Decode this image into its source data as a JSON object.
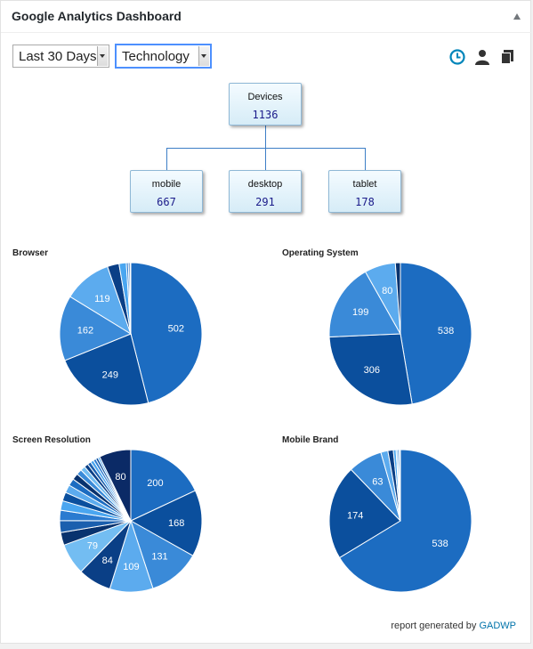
{
  "widget": {
    "title": "Google Analytics Dashboard",
    "period_select": "Last 30 Days",
    "report_select": "Technology",
    "icons": [
      "clock-icon",
      "user-icon",
      "copy-icon"
    ]
  },
  "tree": {
    "root": {
      "label": "Devices",
      "value": "1136"
    },
    "children": [
      {
        "label": "mobile",
        "value": "667"
      },
      {
        "label": "desktop",
        "value": "291"
      },
      {
        "label": "tablet",
        "value": "178"
      }
    ]
  },
  "chart_data": [
    {
      "type": "pie",
      "title": "Browser",
      "values": [
        502,
        249,
        162,
        119,
        29,
        18,
        5,
        4,
        2
      ],
      "labels": [
        "502",
        "249",
        "162",
        "119",
        "",
        "",
        "",
        "",
        ""
      ],
      "colors": [
        "#1c6cc1",
        "#0b4f9d",
        "#3a8ad8",
        "#5cabee",
        "#0a3f86",
        "#4aa6f0",
        "#2b7bd0",
        "#1b5fae",
        "#8cc8f5"
      ]
    },
    {
      "type": "pie",
      "title": "Operating System",
      "values": [
        538,
        306,
        199,
        80,
        13
      ],
      "labels": [
        "538",
        "306",
        "199",
        "80",
        ""
      ],
      "colors": [
        "#1c6cc1",
        "#0b4f9d",
        "#3a8ad8",
        "#5cabee",
        "#08326e"
      ]
    },
    {
      "type": "pie",
      "title": "Screen Resolution",
      "values": [
        200,
        168,
        131,
        109,
        84,
        79,
        32,
        30,
        26,
        24,
        22,
        20,
        18,
        16,
        14,
        12,
        10,
        9,
        8,
        7,
        6,
        5,
        80
      ],
      "labels": [
        "200",
        "168",
        "131",
        "109",
        "84",
        "79",
        "",
        "",
        "",
        "",
        "",
        "",
        "",
        "",
        "",
        "",
        "",
        "",
        "",
        "",
        "",
        "",
        "80"
      ],
      "colors": [
        "#1c6cc1",
        "#0b4f9d",
        "#3a8ad8",
        "#5cabee",
        "#0a3f86",
        "#73bdf2",
        "#08326e",
        "#1b5fae",
        "#2b7bd0",
        "#4aa6f0",
        "#0b4f9d",
        "#5cabee",
        "#1c6cc1",
        "#08326e",
        "#3a8ad8",
        "#73bdf2",
        "#0a3f86",
        "#1b5fae",
        "#4aa6f0",
        "#2b7bd0",
        "#0b4f9d",
        "#5cabee",
        "#0b2a66"
      ]
    },
    {
      "type": "pie",
      "title": "Mobile Brand",
      "values": [
        538,
        174,
        63,
        13,
        10,
        5,
        3,
        3,
        2
      ],
      "labels": [
        "538",
        "174",
        "63",
        "",
        "",
        "",
        "",
        "",
        ""
      ],
      "colors": [
        "#1c6cc1",
        "#0b4f9d",
        "#3a8ad8",
        "#5cabee",
        "#0a3f86",
        "#4aa6f0",
        "#8cc8f5",
        "#2b7bd0",
        "#c7e3f9"
      ]
    }
  ],
  "footer": {
    "text": "report generated by",
    "link": "GADWP"
  }
}
